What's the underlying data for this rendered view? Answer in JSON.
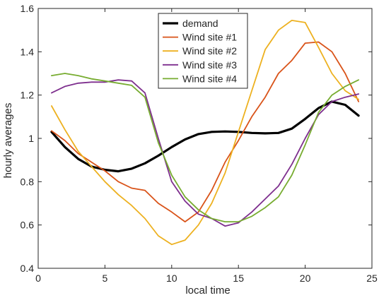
{
  "chart_data": {
    "type": "line",
    "title": "",
    "xlabel": "local time",
    "ylabel": "hourly averages",
    "xlim": [
      0,
      25
    ],
    "ylim": [
      0.4,
      1.6
    ],
    "xticks": [
      0,
      5,
      10,
      15,
      20,
      25
    ],
    "yticks": [
      0.4,
      0.6,
      0.8,
      1,
      1.2,
      1.4,
      1.6
    ],
    "grid": false,
    "legend_position": "top-center",
    "x": [
      1,
      2,
      3,
      4,
      5,
      6,
      7,
      8,
      9,
      10,
      11,
      12,
      13,
      14,
      15,
      16,
      17,
      18,
      19,
      20,
      21,
      22,
      23,
      24
    ],
    "series": [
      {
        "name": "demand",
        "color": "#000000",
        "values": [
          1.03,
          0.96,
          0.905,
          0.87,
          0.855,
          0.848,
          0.86,
          0.885,
          0.92,
          0.96,
          0.995,
          1.02,
          1.03,
          1.032,
          1.03,
          1.025,
          1.023,
          1.025,
          1.045,
          1.09,
          1.14,
          1.17,
          1.155,
          1.105
        ]
      },
      {
        "name": "Wind site #1",
        "color": "#d95319",
        "values": [
          1.035,
          0.99,
          0.93,
          0.89,
          0.85,
          0.8,
          0.77,
          0.76,
          0.7,
          0.66,
          0.615,
          0.66,
          0.76,
          0.89,
          0.99,
          1.1,
          1.19,
          1.3,
          1.36,
          1.44,
          1.445,
          1.4,
          1.3,
          1.17
        ]
      },
      {
        "name": "Wind site #2",
        "color": "#edb120",
        "values": [
          1.15,
          1.04,
          0.94,
          0.87,
          0.8,
          0.74,
          0.69,
          0.63,
          0.55,
          0.51,
          0.53,
          0.6,
          0.7,
          0.84,
          1.03,
          1.22,
          1.41,
          1.5,
          1.545,
          1.535,
          1.42,
          1.3,
          1.22,
          1.18
        ]
      },
      {
        "name": "Wind site #3",
        "color": "#7e2f8e",
        "values": [
          1.21,
          1.24,
          1.255,
          1.26,
          1.26,
          1.27,
          1.265,
          1.21,
          1.0,
          0.8,
          0.71,
          0.65,
          0.63,
          0.595,
          0.61,
          0.66,
          0.72,
          0.78,
          0.88,
          1.0,
          1.11,
          1.17,
          1.19,
          1.205
        ]
      },
      {
        "name": "Wind site #4",
        "color": "#77ac30",
        "values": [
          1.29,
          1.3,
          1.29,
          1.275,
          1.265,
          1.255,
          1.245,
          1.19,
          0.98,
          0.83,
          0.73,
          0.67,
          0.63,
          0.615,
          0.615,
          0.64,
          0.68,
          0.73,
          0.83,
          0.97,
          1.12,
          1.2,
          1.24,
          1.27
        ]
      }
    ]
  }
}
